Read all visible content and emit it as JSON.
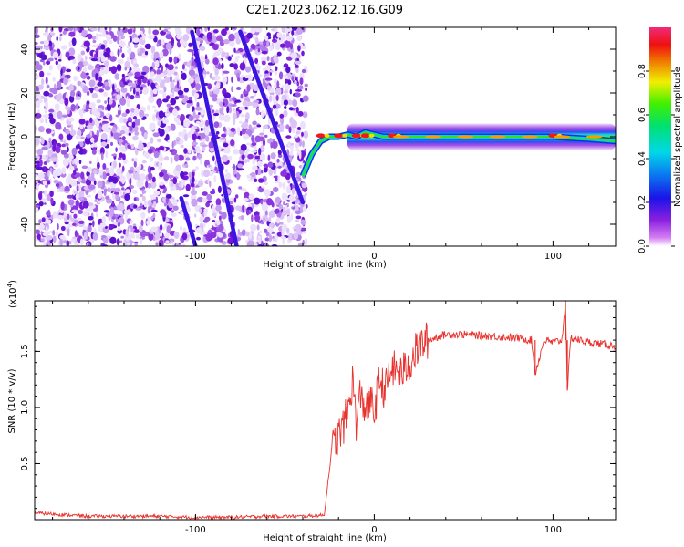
{
  "title": "C2E1.2023.062.12.16.G09",
  "colors": {
    "snr_line": "#e8322d",
    "track": "#3a14e0",
    "noise_light": "#d9c2f5",
    "noise_dark": "#7a22e0"
  },
  "colorbar": {
    "label": "Normalized spectral amplitude",
    "ticks": [
      "0.0",
      "0.2",
      "0.4",
      "0.6",
      "0.8"
    ],
    "range": [
      0,
      1
    ],
    "colormap": "rainbow (white-purple-blue-cyan-green-yellow-red-pink)"
  },
  "chart_data": [
    {
      "type": "heatmap",
      "title": "",
      "xlabel": "Height of straight line (km)",
      "ylabel": "Frequency (Hz)",
      "xlim": [
        -190,
        135
      ],
      "ylim": [
        -50,
        50
      ],
      "x_ticks": [
        "-100",
        "0",
        "100"
      ],
      "y_ticks": [
        "40",
        "20",
        "0",
        "-20",
        "-40"
      ],
      "grid": false,
      "description_regions": {
        "noise_region_x": [
          -190,
          -38
        ],
        "signal_track": {
          "x": [
            -40,
            -35,
            -30,
            -25,
            -20,
            -15,
            -10,
            -5,
            0,
            5,
            10,
            20,
            40,
            60,
            80,
            100,
            120,
            135
          ],
          "y": [
            -18,
            -8,
            -2,
            0,
            0,
            1,
            0,
            2,
            1,
            0,
            0,
            0,
            0,
            0,
            0,
            0,
            -1,
            -2
          ],
          "peak_amplitude_x": [
            -30,
            -20,
            -10,
            -5,
            10,
            100
          ]
        },
        "diagonal_tracks": [
          {
            "x": [
              -102,
              -77
            ],
            "y": [
              48,
              -50
            ]
          },
          {
            "x": [
              -75,
              -40
            ],
            "y": [
              48,
              -30
            ]
          },
          {
            "x": [
              -108,
              -100
            ],
            "y": [
              -28,
              -50
            ]
          }
        ]
      }
    },
    {
      "type": "line",
      "title": "",
      "xlabel": "Height of straight line (km)",
      "ylabel": "SNR (10 * v/v)",
      "y_scale_label": "(x10",
      "y_scale_exp": "4",
      "y_scale_close": ")",
      "xlim": [
        -190,
        135
      ],
      "ylim": [
        0,
        1.95
      ],
      "x_ticks": [
        "-100",
        "0",
        "100"
      ],
      "y_ticks": [
        "0.5",
        "1.0",
        "1.5"
      ],
      "grid": false,
      "series": [
        {
          "x": [
            -190,
            -180,
            -160,
            -140,
            -120,
            -100,
            -80,
            -60,
            -40,
            -28,
            -24,
            -22,
            -20,
            -18,
            -15,
            -12,
            -10,
            -8,
            -5,
            -2,
            0,
            3,
            6,
            10,
            15,
            20,
            25,
            30,
            40,
            50,
            60,
            70,
            80,
            88,
            90,
            95,
            100,
            105,
            107,
            108,
            110,
            115,
            120,
            125,
            130,
            135
          ],
          "y": [
            0.06,
            0.05,
            0.03,
            0.03,
            0.03,
            0.02,
            0.02,
            0.03,
            0.03,
            0.04,
            0.6,
            0.7,
            0.75,
            0.8,
            0.95,
            1.25,
            0.85,
            1.1,
            1.0,
            1.05,
            0.95,
            1.25,
            1.15,
            1.35,
            1.3,
            1.4,
            1.55,
            1.6,
            1.65,
            1.65,
            1.64,
            1.63,
            1.62,
            1.6,
            1.3,
            1.6,
            1.58,
            1.6,
            1.95,
            1.15,
            1.62,
            1.6,
            1.58,
            1.57,
            1.56,
            1.55
          ]
        }
      ]
    }
  ]
}
